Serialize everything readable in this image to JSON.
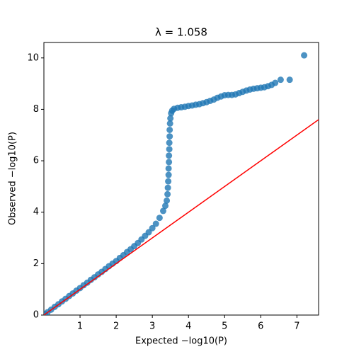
{
  "chart_data": {
    "type": "scatter",
    "title": "λ = 1.058",
    "xlabel": "Expected −log10(P)",
    "ylabel": "Observed −log10(P)",
    "xlim": [
      0,
      7.6
    ],
    "ylim": [
      0,
      10.6
    ],
    "xticks": [
      1,
      2,
      3,
      4,
      5,
      6,
      7
    ],
    "yticks": [
      0,
      2,
      4,
      6,
      8,
      10
    ],
    "identity_line": {
      "color": "#ff0000"
    },
    "series": [
      {
        "color": "#1f77b4",
        "x": [
          0.03,
          0.1,
          0.2,
          0.3,
          0.4,
          0.5,
          0.6,
          0.7,
          0.8,
          0.9,
          1.0,
          1.1,
          1.2,
          1.3,
          1.4,
          1.5,
          1.6,
          1.7,
          1.8,
          1.9,
          2.0,
          2.1,
          2.2,
          2.3,
          2.4,
          2.5,
          2.6,
          2.7,
          2.8,
          2.9,
          3.0,
          3.1,
          3.2,
          3.3,
          3.36,
          3.4,
          3.42,
          3.43,
          3.44,
          3.45,
          3.45,
          3.46,
          3.46,
          3.47,
          3.47,
          3.48,
          3.48,
          3.49,
          3.5,
          3.52,
          3.55,
          3.6,
          3.7,
          3.8,
          3.9,
          4.0,
          4.1,
          4.2,
          4.3,
          4.4,
          4.5,
          4.6,
          4.7,
          4.8,
          4.9,
          5.0,
          5.1,
          5.2,
          5.3,
          5.4,
          5.5,
          5.6,
          5.7,
          5.8,
          5.9,
          6.0,
          6.1,
          6.2,
          6.3,
          6.4,
          6.55,
          6.8,
          7.2
        ],
        "y": [
          0.04,
          0.11,
          0.21,
          0.32,
          0.42,
          0.53,
          0.63,
          0.74,
          0.84,
          0.95,
          1.05,
          1.16,
          1.26,
          1.37,
          1.47,
          1.58,
          1.68,
          1.79,
          1.9,
          2.0,
          2.1,
          2.22,
          2.33,
          2.45,
          2.56,
          2.68,
          2.8,
          2.94,
          3.08,
          3.22,
          3.38,
          3.55,
          3.78,
          4.05,
          4.25,
          4.45,
          4.7,
          4.95,
          5.2,
          5.45,
          5.7,
          5.95,
          6.2,
          6.45,
          6.7,
          6.95,
          7.2,
          7.45,
          7.65,
          7.85,
          7.95,
          8.02,
          8.06,
          8.08,
          8.1,
          8.13,
          8.15,
          8.18,
          8.2,
          8.24,
          8.28,
          8.33,
          8.38,
          8.45,
          8.5,
          8.55,
          8.56,
          8.56,
          8.58,
          8.63,
          8.68,
          8.73,
          8.77,
          8.8,
          8.82,
          8.84,
          8.86,
          8.9,
          8.95,
          9.03,
          9.15,
          9.15,
          10.1
        ]
      }
    ]
  }
}
